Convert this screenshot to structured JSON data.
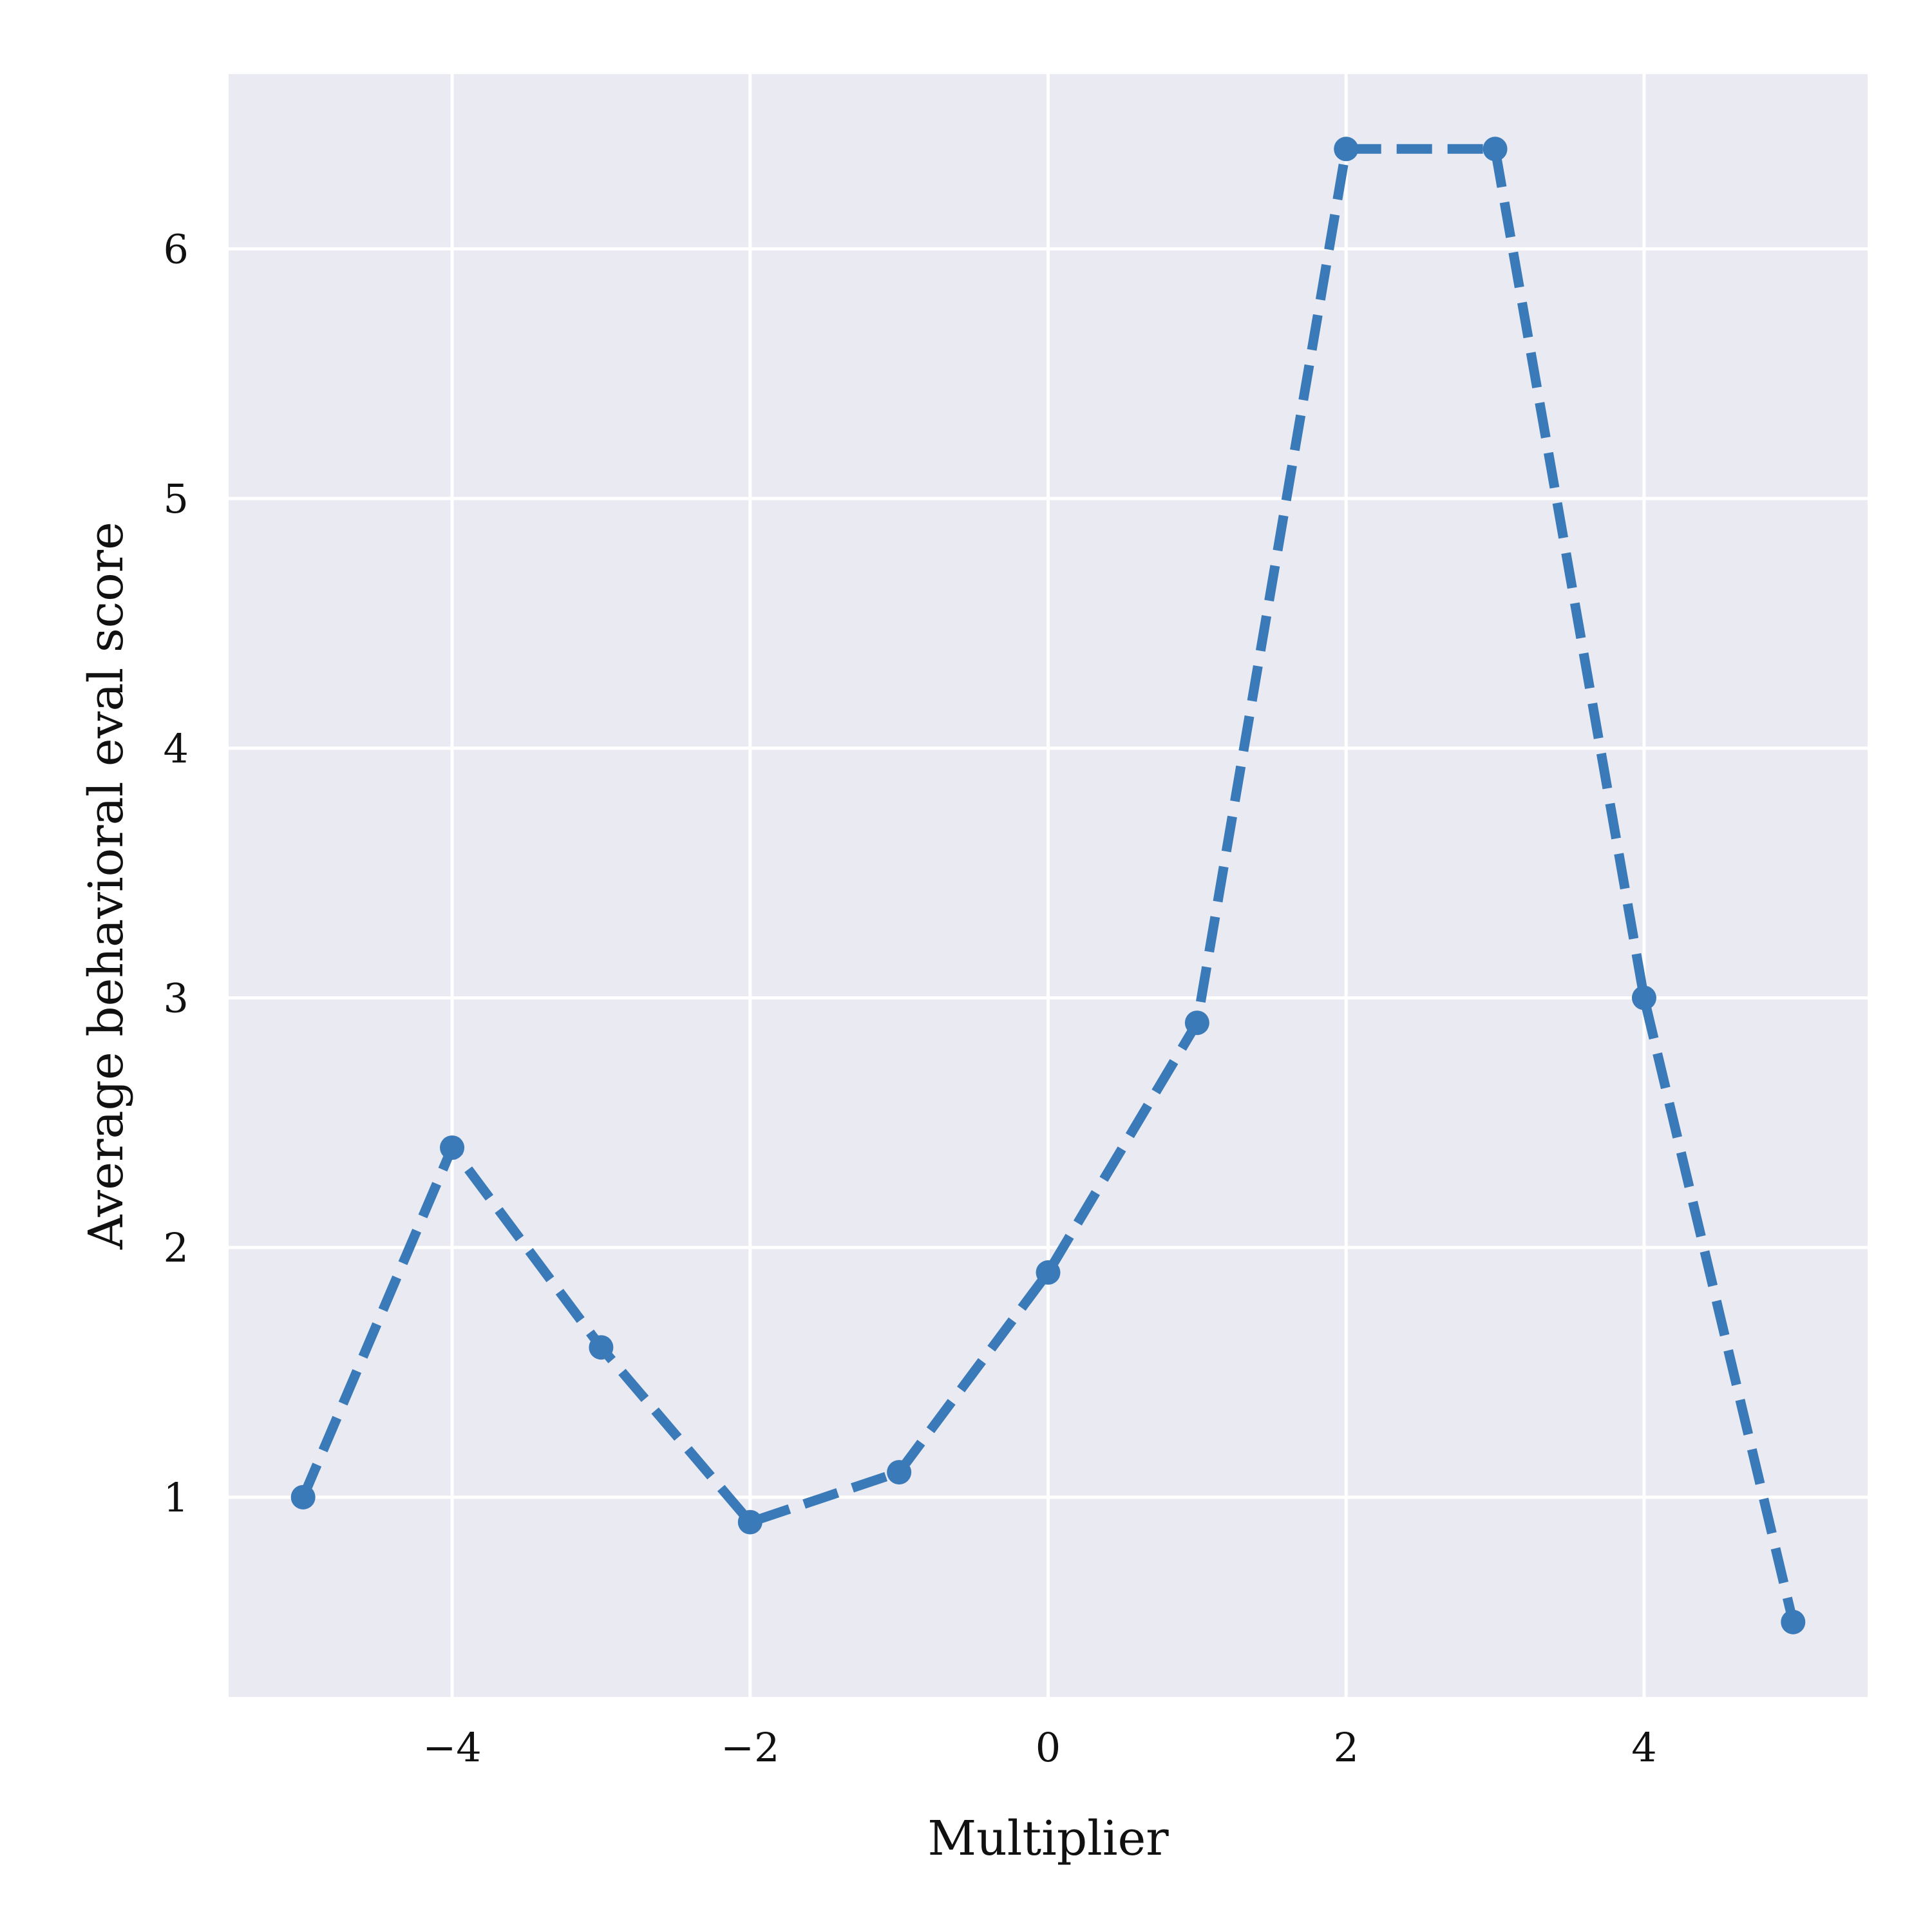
{
  "chart_data": {
    "type": "line",
    "title": "",
    "xlabel": "Multiplier",
    "ylabel": "Average behavioral eval score",
    "xlim": [
      -5.5,
      5.5
    ],
    "ylim": [
      0.2,
      6.7
    ],
    "x_ticks": [
      -4,
      -2,
      0,
      2,
      4
    ],
    "x_tick_labels": [
      "−4",
      "−2",
      "0",
      "2",
      "4"
    ],
    "y_ticks": [
      1,
      2,
      3,
      4,
      5,
      6
    ],
    "y_tick_labels": [
      "1",
      "2",
      "3",
      "4",
      "5",
      "6"
    ],
    "grid": true,
    "legend": "none",
    "series": [
      {
        "x": [
          -5,
          -4,
          -3,
          -2,
          -1,
          0,
          1,
          2,
          3,
          4,
          5
        ],
        "y": [
          1.0,
          2.4,
          1.6,
          0.9,
          1.1,
          1.9,
          2.9,
          6.4,
          6.4,
          3.0,
          0.5
        ],
        "color": "#3a7ab8",
        "line_style": "dashed",
        "marker": "circle"
      }
    ],
    "colors": {
      "plot_background": "#eaeaf2",
      "grid": "#ffffff",
      "page_background": "#ffffff"
    }
  }
}
